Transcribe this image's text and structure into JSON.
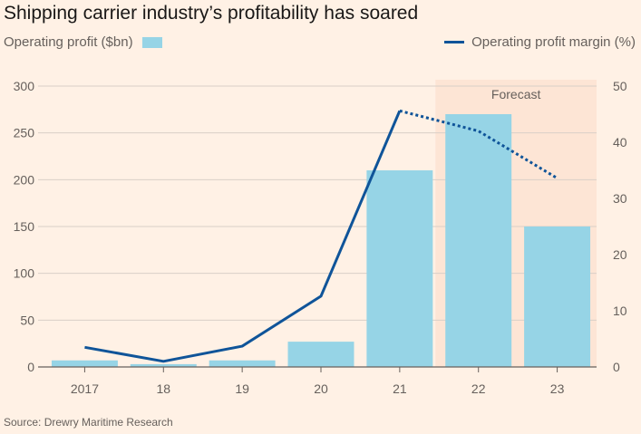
{
  "title": "Shipping carrier industry’s profitability has soared",
  "source": "Source: Drewry Maritime Research",
  "colors": {
    "background": "#fff1e5",
    "bars": "#96d4e6",
    "line": "#0f5499",
    "forecast_band": "#fde5d5",
    "grid": "#d9cfc7",
    "axis": "#66605c"
  },
  "chart_data": {
    "type": "bar",
    "categories": [
      "2017",
      "18",
      "19",
      "20",
      "21",
      "22",
      "23"
    ],
    "series": [
      {
        "name": "Operating profit ($bn)",
        "type": "bar",
        "axis": "left",
        "values": [
          7,
          3,
          7,
          27,
          210,
          270,
          150
        ]
      },
      {
        "name": "Operating profit margin (%)",
        "type": "line",
        "axis": "right",
        "values": [
          3.5,
          1,
          3.7,
          12.6,
          45.6,
          42,
          33.6
        ],
        "dashed_from_index": 4
      }
    ],
    "left_axis": {
      "ylim": [
        0,
        300
      ],
      "ticks": [
        0,
        50,
        100,
        150,
        200,
        250,
        300
      ]
    },
    "right_axis": {
      "ylim": [
        0,
        50
      ],
      "ticks": [
        0,
        10,
        20,
        30,
        40,
        50
      ]
    },
    "forecast": {
      "label": "Forecast",
      "start_category": "22",
      "end_category": "23"
    },
    "grid": true,
    "legend_placement": "top"
  }
}
